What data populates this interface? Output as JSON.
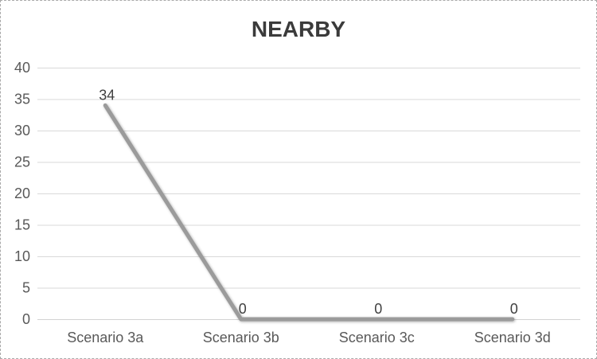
{
  "chart_data": {
    "type": "line",
    "title": "NEARBY",
    "categories": [
      "Scenario 3a",
      "Scenario 3b",
      "Scenario 3c",
      "Scenario 3d"
    ],
    "series": [
      {
        "name": "NEARBY",
        "values": [
          34,
          0,
          0,
          0
        ]
      }
    ],
    "values": [
      34,
      0,
      0,
      0
    ],
    "data_labels": [
      "34",
      "0",
      "0",
      "0"
    ],
    "xlabel": "",
    "ylabel": "",
    "ylim": [
      0,
      40
    ],
    "ytick_step": 5,
    "ytick_labels": [
      "0",
      "5",
      "10",
      "15",
      "20",
      "25",
      "30",
      "35",
      "40"
    ],
    "grid": true,
    "legend": "none",
    "colors": {
      "series_line": "#9b9b9b",
      "gridline": "#d9d9d9",
      "axis_line": "#d2d2d2",
      "title_text": "#3b3b3b",
      "tick_label_text": "#595959",
      "data_label_text": "#404040",
      "chart_border": "#a9a9a9",
      "background": "#ffffff"
    }
  }
}
